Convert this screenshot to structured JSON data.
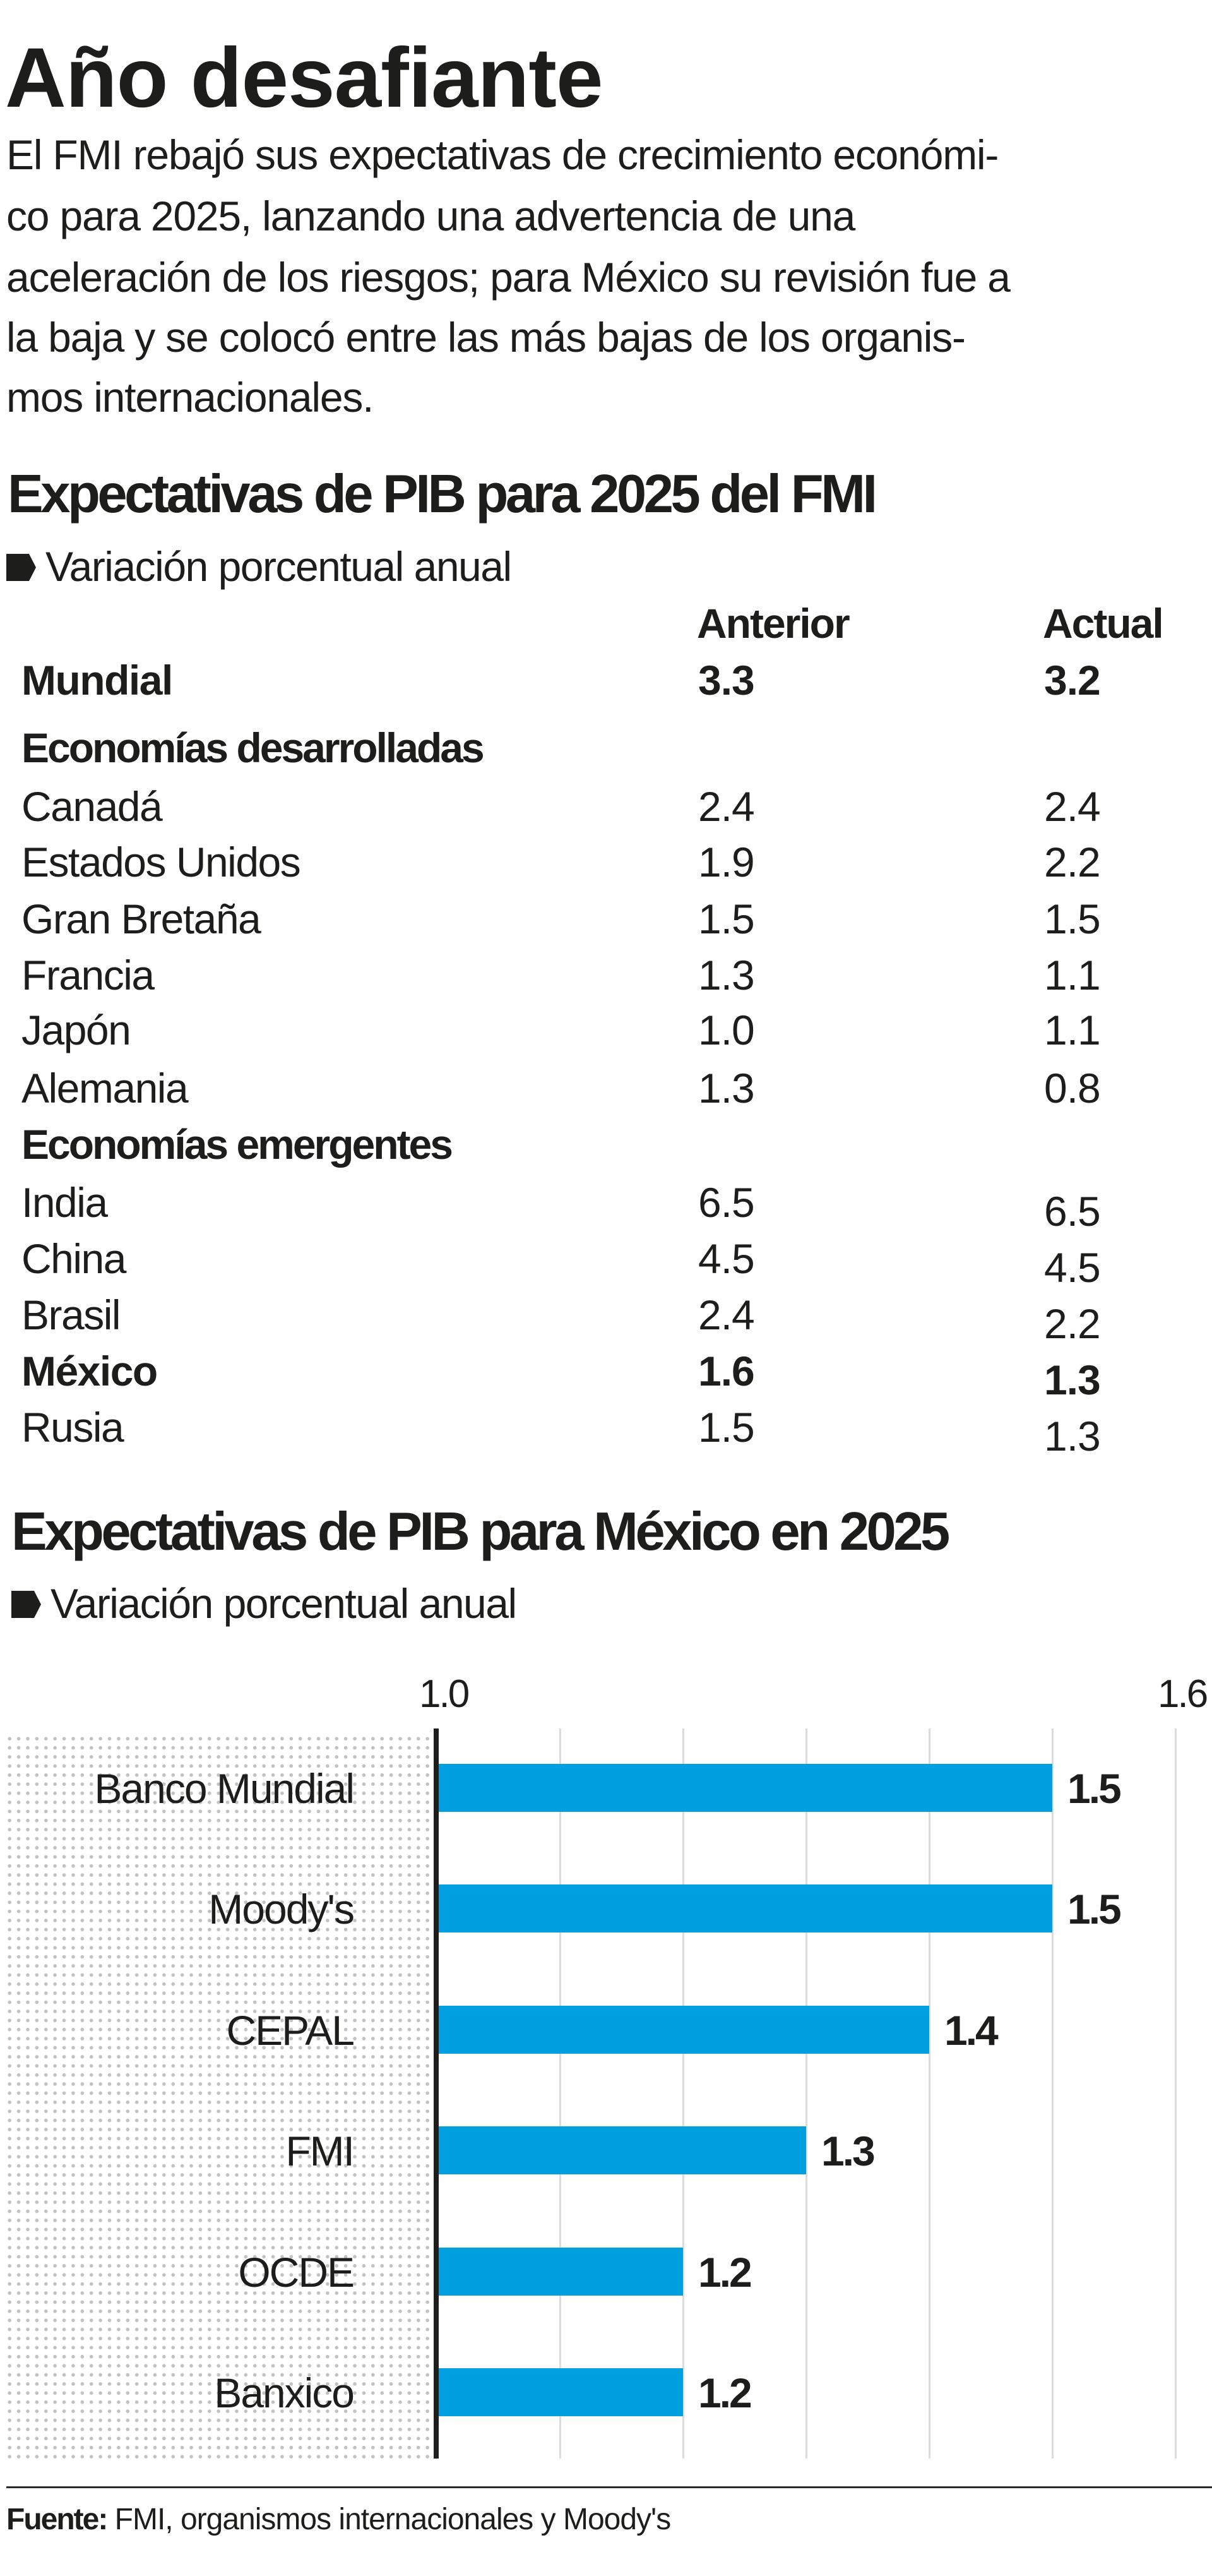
{
  "headline": "Año desafiante",
  "intro_lines": [
    "El FMI rebajó sus expectativas de crecimiento económi-",
    "co  para 2025, lanzando una advertencia  de una",
    "aceleración de los riesgos; para México su revisión fue a",
    "la baja y se colocó entre las más bajas de los organis-",
    "mos internacionales."
  ],
  "table_section": {
    "title": "Expectativas de PIB para 2025 del FMI",
    "subtitle": "Variación porcentual anual",
    "subtitle_icon": "tag-arrow-icon",
    "columns": [
      "Anterior",
      "Actual"
    ],
    "rows": [
      {
        "label": "Mundial",
        "anterior": "3.3",
        "actual": "3.2",
        "style": "bold"
      },
      {
        "label": "Economías desarrolladas",
        "anterior": "",
        "actual": "",
        "style": "group"
      },
      {
        "label": "Canadá",
        "anterior": "2.4",
        "actual": "2.4",
        "style": "normal"
      },
      {
        "label": "Estados Unidos",
        "anterior": "1.9",
        "actual": "2.2",
        "style": "normal"
      },
      {
        "label": "Gran Bretaña",
        "anterior": "1.5",
        "actual": "1.5",
        "style": "normal"
      },
      {
        "label": "Francia",
        "anterior": "1.3",
        "actual": "1.1",
        "style": "normal"
      },
      {
        "label": "Japón",
        "anterior": "1.0",
        "actual": "1.1",
        "style": "normal"
      },
      {
        "label": "Alemania",
        "anterior": "1.3",
        "actual": "0.8",
        "style": "normal"
      },
      {
        "label": "Economías emergentes",
        "anterior": "",
        "actual": "",
        "style": "group"
      },
      {
        "label": "India",
        "anterior": "6.5",
        "actual": "6.5",
        "style": "normal"
      },
      {
        "label": "China",
        "anterior": "4.5",
        "actual": "4.5",
        "style": "normal"
      },
      {
        "label": "Brasil",
        "anterior": "2.4",
        "actual": "2.2",
        "style": "normal"
      },
      {
        "label": "México",
        "anterior": "1.6",
        "actual": "1.3",
        "style": "bold"
      },
      {
        "label": "Rusia",
        "anterior": "1.5",
        "actual": "1.3",
        "style": "normal"
      }
    ]
  },
  "chart_section": {
    "title": "Expectativas de PIB para México en 2025",
    "subtitle": "Variación porcentual anual",
    "subtitle_icon": "tag-arrow-icon"
  },
  "chart_data": {
    "type": "bar",
    "orientation": "horizontal",
    "title": "Expectativas de PIB para México en 2025",
    "subtitle": "Variación porcentual anual",
    "categories": [
      "Banco Mundial",
      "Moody's",
      "CEPAL",
      "FMI",
      "OCDE",
      "Banxico"
    ],
    "values": [
      1.5,
      1.5,
      1.4,
      1.3,
      1.2,
      1.2
    ],
    "value_labels": [
      "1.5",
      "1.5",
      "1.4",
      "1.3",
      "1.2",
      "1.2"
    ],
    "xlim": [
      1.0,
      1.6
    ],
    "x_tick_labels": [
      "1.0",
      "1.6"
    ],
    "gridlines_at": [
      1.1,
      1.2,
      1.3,
      1.4,
      1.5,
      1.6
    ],
    "grid": true,
    "bar_color": "#009fe0",
    "xlabel": "",
    "ylabel": ""
  },
  "footer": {
    "source_label": "Fuente:",
    "source_text": " FMI, organismos internacionales y Moody's"
  },
  "colors": {
    "text": "#1d1d1b",
    "bar": "#009fe0",
    "gridline": "#dcdcdc",
    "dots": "#c2c2c2"
  }
}
